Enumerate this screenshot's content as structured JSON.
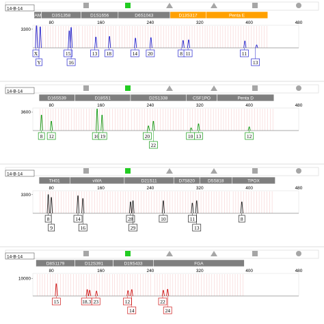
{
  "colors": {
    "marker_toolbar": "#a6a6a6",
    "marker_band": "#7f7f7f",
    "marker_highlight": "#ffa000",
    "green_indicator": "#22cc22",
    "bin_lines": "#f4c6c6",
    "border": "#555555",
    "sample_bar": "#ffffff"
  },
  "chart_data": [
    {
      "type": "line",
      "sample": "14-B-14",
      "dye_color": "#2222cc",
      "x_ticks": [
        80,
        160,
        240,
        320,
        400,
        480
      ],
      "y_tick": "3300",
      "xlim": [
        50,
        480
      ],
      "ylim": [
        0,
        4000
      ],
      "markers": [
        {
          "name": "AM",
          "from": 52,
          "to": 64,
          "highlight": false
        },
        {
          "name": "D3S1358",
          "from": 64,
          "to": 128,
          "highlight": false
        },
        {
          "name": "D1S1656",
          "from": 128,
          "to": 188,
          "highlight": false
        },
        {
          "name": "D6S1043",
          "from": 188,
          "to": 272,
          "highlight": false
        },
        {
          "name": "D13S317",
          "from": 272,
          "to": 330,
          "highlight": true
        },
        {
          "name": "Penta E",
          "from": 330,
          "to": 430,
          "highlight": true
        }
      ],
      "peaks": [
        {
          "x": 56,
          "h": 3900
        },
        {
          "x": 62,
          "h": 3700
        },
        {
          "x": 109,
          "h": 3000
        },
        {
          "x": 112,
          "h": 3600
        },
        {
          "x": 152,
          "h": 1900
        },
        {
          "x": 174,
          "h": 2000
        },
        {
          "x": 216,
          "h": 1700
        },
        {
          "x": 241,
          "h": 1800
        },
        {
          "x": 293,
          "h": 1300
        },
        {
          "x": 302,
          "h": 1400
        },
        {
          "x": 393,
          "h": 1200
        },
        {
          "x": 412,
          "h": 500
        }
      ],
      "alleles": [
        {
          "label": "X",
          "x": 55,
          "row": 1
        },
        {
          "label": "Y",
          "x": 60,
          "row": 2
        },
        {
          "label": "15",
          "x": 107,
          "row": 1
        },
        {
          "label": "16",
          "x": 112,
          "row": 2
        },
        {
          "label": "13",
          "x": 150,
          "row": 1
        },
        {
          "label": "18",
          "x": 173,
          "row": 1
        },
        {
          "label": "14",
          "x": 215,
          "row": 1
        },
        {
          "label": "20",
          "x": 240,
          "row": 1
        },
        {
          "label": "8",
          "x": 290,
          "row": 1
        },
        {
          "label": "11",
          "x": 301,
          "row": 1
        },
        {
          "label": "11",
          "x": 392,
          "row": 1
        },
        {
          "label": "13",
          "x": 410,
          "row": 2
        }
      ]
    },
    {
      "type": "line",
      "sample": "14-B-14",
      "dye_color": "#119911",
      "x_ticks": [
        80,
        160,
        240,
        320,
        400,
        480
      ],
      "y_tick": "3600",
      "xlim": [
        50,
        480
      ],
      "ylim": [
        0,
        4400
      ],
      "markers": [
        {
          "name": "D16S539",
          "from": 60,
          "to": 118,
          "highlight": false
        },
        {
          "name": "D18S51",
          "from": 118,
          "to": 208,
          "highlight": false
        },
        {
          "name": "D2S1338",
          "from": 208,
          "to": 298,
          "highlight": false
        },
        {
          "name": "CSF1PO",
          "from": 298,
          "to": 348,
          "highlight": false
        },
        {
          "name": "Penta D",
          "from": 348,
          "to": 440,
          "highlight": false
        }
      ],
      "peaks": [
        {
          "x": 64,
          "h": 3000
        },
        {
          "x": 80,
          "h": 1800
        },
        {
          "x": 154,
          "h": 4200
        },
        {
          "x": 162,
          "h": 3000
        },
        {
          "x": 237,
          "h": 900
        },
        {
          "x": 245,
          "h": 1800
        },
        {
          "x": 306,
          "h": 500
        },
        {
          "x": 318,
          "h": 1300
        },
        {
          "x": 400,
          "h": 700
        }
      ],
      "alleles": [
        {
          "label": "8",
          "x": 64,
          "row": 1
        },
        {
          "label": "12",
          "x": 80,
          "row": 1
        },
        {
          "label": "16",
          "x": 153,
          "row": 1
        },
        {
          "label": "19",
          "x": 163,
          "row": 1
        },
        {
          "label": "20",
          "x": 235,
          "row": 1
        },
        {
          "label": "22",
          "x": 245,
          "row": 2
        },
        {
          "label": "10",
          "x": 305,
          "row": 1
        },
        {
          "label": "13",
          "x": 318,
          "row": 1
        },
        {
          "label": "12",
          "x": 400,
          "row": 1
        }
      ]
    },
    {
      "type": "line",
      "sample": "14-B-14",
      "dye_color": "#222222",
      "x_ticks": [
        80,
        160,
        240,
        320,
        400,
        480
      ],
      "y_tick": "3300",
      "xlim": [
        50,
        480
      ],
      "ylim": [
        0,
        4000
      ],
      "markers": [
        {
          "name": "TH01",
          "from": 60,
          "to": 110,
          "highlight": false
        },
        {
          "name": "vWA",
          "from": 110,
          "to": 198,
          "highlight": false
        },
        {
          "name": "D21S11",
          "from": 198,
          "to": 278,
          "highlight": false
        },
        {
          "name": "D7S820",
          "from": 278,
          "to": 320,
          "highlight": false
        },
        {
          "name": "D5S818",
          "from": 320,
          "to": 372,
          "highlight": false
        },
        {
          "name": "TPOX",
          "from": 372,
          "to": 442,
          "highlight": false
        }
      ],
      "peaks": [
        {
          "x": 75,
          "h": 3300
        },
        {
          "x": 80,
          "h": 2800
        },
        {
          "x": 123,
          "h": 3100
        },
        {
          "x": 131,
          "h": 2600
        },
        {
          "x": 208,
          "h": 2000
        },
        {
          "x": 212,
          "h": 2200
        },
        {
          "x": 261,
          "h": 2200
        },
        {
          "x": 308,
          "h": 1800
        },
        {
          "x": 315,
          "h": 2200
        },
        {
          "x": 388,
          "h": 2000
        }
      ],
      "alleles": [
        {
          "label": "8",
          "x": 75,
          "row": 1
        },
        {
          "label": "9",
          "x": 80,
          "row": 2
        },
        {
          "label": "14",
          "x": 123,
          "row": 1
        },
        {
          "label": "16",
          "x": 131,
          "row": 2
        },
        {
          "label": "28",
          "x": 208,
          "row": 1
        },
        {
          "label": "29",
          "x": 212,
          "row": 2
        },
        {
          "label": "10",
          "x": 261,
          "row": 1
        },
        {
          "label": "11",
          "x": 308,
          "row": 1
        },
        {
          "label": "13",
          "x": 315,
          "row": 2
        },
        {
          "label": "8",
          "x": 388,
          "row": 1
        }
      ]
    },
    {
      "type": "line",
      "sample": "14-B-14",
      "dye_color": "#cc1111",
      "x_ticks": [
        80,
        160,
        240,
        320,
        400,
        480
      ],
      "y_tick": "10000",
      "xlim": [
        50,
        480
      ],
      "ylim": [
        0,
        13000
      ],
      "markers": [
        {
          "name": "D8S1179",
          "from": 55,
          "to": 118,
          "highlight": false
        },
        {
          "name": "D12S391",
          "from": 118,
          "to": 180,
          "highlight": false
        },
        {
          "name": "D19S433",
          "from": 180,
          "to": 245,
          "highlight": false
        },
        {
          "name": "FGA",
          "from": 245,
          "to": 392,
          "highlight": false
        }
      ],
      "peaks": [
        {
          "x": 88,
          "h": 7000
        },
        {
          "x": 138,
          "h": 3600
        },
        {
          "x": 142,
          "h": 3200
        },
        {
          "x": 153,
          "h": 2800
        },
        {
          "x": 204,
          "h": 3000
        },
        {
          "x": 210,
          "h": 3600
        },
        {
          "x": 261,
          "h": 3200
        },
        {
          "x": 268,
          "h": 3800
        }
      ],
      "alleles": [
        {
          "label": "15",
          "x": 88,
          "row": 1
        },
        {
          "label": "18.3",
          "x": 137,
          "row": 1
        },
        {
          "label": "23",
          "x": 152,
          "row": 1
        },
        {
          "label": "12",
          "x": 203,
          "row": 1
        },
        {
          "label": "14",
          "x": 210,
          "row": 2
        },
        {
          "label": "22",
          "x": 260,
          "row": 1
        },
        {
          "label": "24",
          "x": 268,
          "row": 2
        }
      ]
    }
  ]
}
